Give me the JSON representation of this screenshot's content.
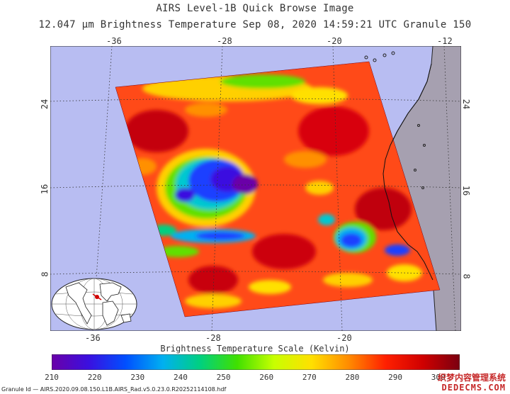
{
  "title": "AIRS Level-1B Quick Browse Image",
  "subtitle": "12.047 μm Brightness Temperature    Sep 08, 2020 14:59:21 UTC   Granule 150",
  "axes": {
    "top_lon_ticks": [
      "-36",
      "-28",
      "-20",
      "-12"
    ],
    "bottom_lon_ticks": [
      "-36",
      "-28",
      "-20"
    ],
    "left_lat_ticks": [
      "24",
      "16",
      "8"
    ],
    "right_lat_ticks": [
      "24",
      "16",
      "8"
    ]
  },
  "colorbar": {
    "title": "Brightness Temperature Scale (Kelvin)",
    "ticks": [
      "210",
      "220",
      "230",
      "240",
      "250",
      "260",
      "270",
      "280",
      "290",
      "300"
    ],
    "min": 210,
    "max": 305,
    "colors": [
      "#6a00a8",
      "#3a10e0",
      "#0050ff",
      "#00b0f0",
      "#00d080",
      "#40e000",
      "#c8ff00",
      "#ffe000",
      "#ff8c00",
      "#ff2000",
      "#d00000",
      "#7a0010"
    ]
  },
  "map": {
    "ocean_color": "#b8bdf2",
    "land_color": "#a6a0b0",
    "swath_base_color": "#ff4a18"
  },
  "granule_id": "Granule Id — AIRS.2020.09.08.150.L1B.AIRS_Rad.v5.0.23.0.R20252114108.hdf",
  "watermark": {
    "line1": "织梦内容管理系统",
    "line2": "DEDECMS.COM"
  }
}
